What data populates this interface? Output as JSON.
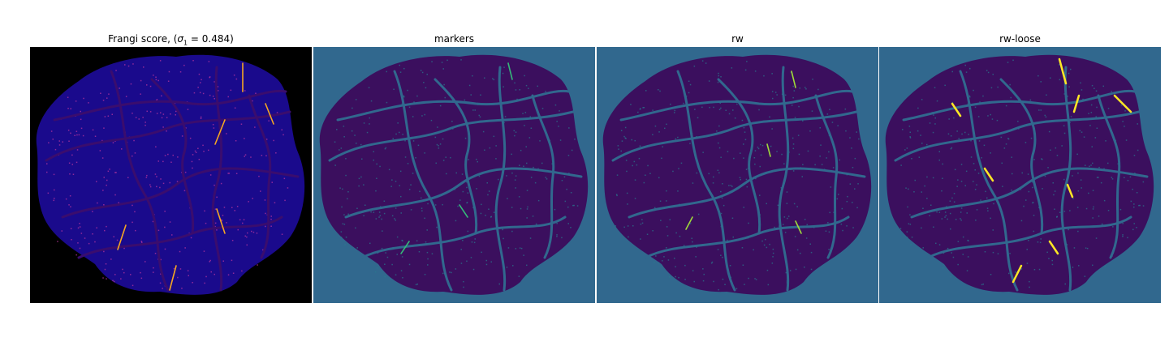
{
  "figure": {
    "panels": [
      {
        "id": "frangi",
        "title_prefix": "Frangi score, (",
        "title_sigma": "σ",
        "title_sub": "1",
        "title_suffix": " = 0.484)",
        "background": "#000000",
        "blob": "#1a0a8c",
        "vessel": "#3a0d6e",
        "highlight": "#f5a623",
        "accent": "#c0369f"
      },
      {
        "id": "markers",
        "title": "markers",
        "background": "#31688e",
        "blob": "#3b0f5e",
        "vessel": "#31688e",
        "highlight": "#35b779",
        "accent": "#2a7b8e"
      },
      {
        "id": "rw",
        "title": "rw",
        "background": "#31688e",
        "blob": "#3b0f5e",
        "vessel": "#31688e",
        "highlight": "#9fda3a",
        "accent": "#2a7b8e"
      },
      {
        "id": "rw-loose",
        "title": "rw-loose",
        "background": "#31688e",
        "blob": "#3b0f5e",
        "vessel": "#31688e",
        "highlight": "#fde725",
        "accent": "#2a7b8e"
      }
    ]
  }
}
